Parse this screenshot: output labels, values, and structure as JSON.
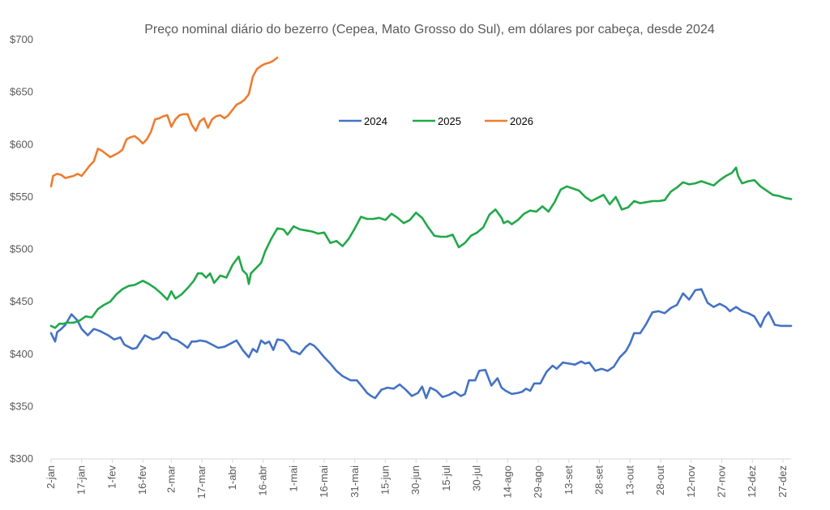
{
  "chart_data": {
    "type": "line",
    "title": "Preço nominal diário do bezerro (Cepea, Mato Grosso do Sul), em dólares por cabeça, desde 2024",
    "xlabel": "",
    "ylabel": "",
    "ylim": [
      300,
      700
    ],
    "yticks": [
      300,
      350,
      400,
      450,
      500,
      550,
      600,
      650,
      700
    ],
    "ytick_labels": [
      "$300",
      "$350",
      "$400",
      "$450",
      "$500",
      "$550",
      "$600",
      "$650",
      "$700"
    ],
    "x_unit": "day of year",
    "xlim": [
      2,
      365
    ],
    "x_ticks": [
      {
        "day": 2,
        "label": "2-jan"
      },
      {
        "day": 17,
        "label": "17-jan"
      },
      {
        "day": 32,
        "label": "1-fev"
      },
      {
        "day": 47,
        "label": "16-fev"
      },
      {
        "day": 61,
        "label": "2-mar"
      },
      {
        "day": 76,
        "label": "17-mar"
      },
      {
        "day": 91,
        "label": "1-abr"
      },
      {
        "day": 106,
        "label": "16-abr"
      },
      {
        "day": 121,
        "label": "1-mai"
      },
      {
        "day": 136,
        "label": "16-mai"
      },
      {
        "day": 151,
        "label": "31-mai"
      },
      {
        "day": 166,
        "label": "15-jun"
      },
      {
        "day": 181,
        "label": "30-jun"
      },
      {
        "day": 196,
        "label": "15-jul"
      },
      {
        "day": 211,
        "label": "30-jul"
      },
      {
        "day": 226,
        "label": "14-ago"
      },
      {
        "day": 241,
        "label": "29-ago"
      },
      {
        "day": 256,
        "label": "13-set"
      },
      {
        "day": 271,
        "label": "28-set"
      },
      {
        "day": 286,
        "label": "13-out"
      },
      {
        "day": 301,
        "label": "28-out"
      },
      {
        "day": 316,
        "label": "12-nov"
      },
      {
        "day": 331,
        "label": "27-nov"
      },
      {
        "day": 346,
        "label": "12-dez"
      },
      {
        "day": 361,
        "label": "27-dez"
      }
    ],
    "legend_position": "upper-center",
    "series": [
      {
        "name": "2024",
        "color": "#4472C4",
        "x": [
          2,
          4,
          5,
          7,
          9,
          12,
          15,
          17,
          20,
          23,
          26,
          30,
          33,
          36,
          38,
          40,
          42,
          44,
          48,
          52,
          55,
          57,
          59,
          61,
          64,
          67,
          69,
          71,
          73,
          75,
          78,
          82,
          84,
          87,
          90,
          93,
          96,
          99,
          101,
          103,
          105,
          107,
          109,
          111,
          113,
          116,
          118,
          120,
          122,
          124,
          127,
          129,
          131,
          133,
          136,
          139,
          142,
          145,
          147,
          149,
          152,
          155,
          157,
          159,
          161,
          164,
          167,
          170,
          173,
          176,
          179,
          182,
          184,
          186,
          188,
          191,
          194,
          197,
          200,
          203,
          205,
          207,
          210,
          212,
          215,
          218,
          221,
          223,
          225,
          228,
          231,
          233,
          235,
          237,
          239,
          242,
          245,
          248,
          250,
          253,
          256,
          259,
          262,
          264,
          266,
          269,
          272,
          275,
          278,
          281,
          284,
          286,
          288,
          291,
          294,
          297,
          300,
          303,
          306,
          309,
          312,
          315,
          318,
          321,
          324,
          327,
          330,
          333,
          335,
          338,
          341,
          344,
          347,
          350,
          352,
          354,
          357,
          360,
          363,
          365
        ],
        "values": [
          420,
          412,
          421,
          424,
          428,
          438,
          432,
          424,
          418,
          424,
          422,
          418,
          414,
          416,
          409,
          407,
          405,
          406,
          418,
          414,
          416,
          421,
          420,
          415,
          413,
          409,
          406,
          412,
          412,
          413,
          412,
          408,
          406,
          407,
          410,
          413,
          404,
          397,
          405,
          402,
          413,
          410,
          412,
          404,
          414,
          413,
          409,
          403,
          402,
          400,
          407,
          410,
          408,
          404,
          397,
          391,
          384,
          379,
          377,
          375,
          375,
          368,
          363,
          360,
          358,
          366,
          368,
          367,
          371,
          366,
          360,
          363,
          369,
          358,
          368,
          365,
          359,
          361,
          364,
          360,
          362,
          375,
          375,
          384,
          385,
          370,
          377,
          368,
          365,
          362,
          363,
          364,
          367,
          365,
          372,
          372,
          383,
          389,
          386,
          392,
          391,
          390,
          393,
          391,
          392,
          384,
          386,
          384,
          388,
          397,
          403,
          410,
          420,
          420,
          429,
          440,
          441,
          439,
          444,
          447,
          458,
          452,
          461,
          462,
          449,
          445,
          448,
          445,
          441,
          445,
          441,
          439,
          436,
          426,
          435,
          440,
          428,
          427,
          427,
          427
        ]
      },
      {
        "name": "2025",
        "color": "#22A84A",
        "x": [
          2,
          4,
          6,
          8,
          10,
          13,
          16,
          19,
          22,
          25,
          28,
          31,
          34,
          37,
          40,
          43,
          45,
          47,
          50,
          53,
          56,
          59,
          61,
          63,
          66,
          69,
          72,
          74,
          76,
          78,
          80,
          82,
          85,
          88,
          91,
          94,
          96,
          98,
          99,
          100,
          102,
          105,
          107,
          110,
          113,
          116,
          118,
          121,
          124,
          127,
          130,
          133,
          136,
          139,
          142,
          145,
          148,
          151,
          154,
          157,
          160,
          163,
          166,
          169,
          172,
          175,
          178,
          181,
          184,
          187,
          190,
          193,
          196,
          199,
          202,
          205,
          208,
          211,
          214,
          217,
          220,
          223,
          224,
          226,
          228,
          231,
          234,
          237,
          240,
          243,
          246,
          249,
          252,
          255,
          258,
          261,
          264,
          267,
          270,
          273,
          276,
          279,
          282,
          285,
          288,
          291,
          294,
          297,
          300,
          303,
          306,
          309,
          312,
          315,
          318,
          321,
          324,
          327,
          330,
          333,
          336,
          338,
          339,
          341,
          344,
          347,
          350,
          353,
          356,
          359,
          362,
          365
        ],
        "values": [
          427,
          425,
          429,
          429,
          430,
          430,
          432,
          436,
          435,
          443,
          447,
          450,
          457,
          462,
          465,
          466,
          468,
          470,
          467,
          463,
          458,
          452,
          460,
          453,
          457,
          463,
          470,
          477,
          477,
          473,
          477,
          468,
          475,
          473,
          485,
          493,
          480,
          476,
          467,
          477,
          481,
          487,
          498,
          510,
          520,
          519,
          514,
          522,
          519,
          518,
          517,
          515,
          516,
          506,
          508,
          503,
          510,
          520,
          531,
          529,
          529,
          530,
          528,
          534,
          530,
          525,
          528,
          535,
          530,
          521,
          513,
          512,
          512,
          514,
          502,
          506,
          513,
          516,
          521,
          533,
          538,
          530,
          525,
          527,
          524,
          528,
          534,
          537,
          536,
          541,
          536,
          545,
          557,
          560,
          558,
          556,
          550,
          546,
          549,
          552,
          543,
          550,
          538,
          540,
          546,
          544,
          545,
          546,
          546,
          547,
          555,
          559,
          564,
          562,
          563,
          565,
          563,
          561,
          566,
          570,
          573,
          578,
          570,
          563,
          565,
          566,
          560,
          556,
          552,
          551,
          549,
          548
        ]
      },
      {
        "name": "2026",
        "color": "#ED7D31",
        "x": [
          2,
          3,
          5,
          7,
          9,
          11,
          13,
          15,
          17,
          19,
          21,
          23,
          25,
          27,
          29,
          31,
          33,
          35,
          37,
          39,
          41,
          43,
          45,
          47,
          49,
          51,
          53,
          55,
          57,
          59,
          61,
          63,
          65,
          67,
          69,
          71,
          73,
          75,
          77,
          79,
          81,
          83,
          85,
          87,
          89,
          91,
          93,
          95,
          97,
          99,
          101,
          103,
          105,
          107,
          109,
          111,
          113
        ],
        "values": [
          560,
          570,
          572,
          571,
          568,
          569,
          570,
          572,
          570,
          575,
          580,
          584,
          596,
          594,
          591,
          588,
          590,
          592,
          595,
          605,
          607,
          608,
          605,
          601,
          605,
          612,
          624,
          625,
          627,
          628,
          617,
          624,
          628,
          629,
          629,
          619,
          613,
          622,
          625,
          616,
          624,
          627,
          628,
          625,
          628,
          633,
          638,
          640,
          643,
          648,
          665,
          672,
          675,
          677,
          678,
          680,
          683
        ]
      }
    ]
  }
}
